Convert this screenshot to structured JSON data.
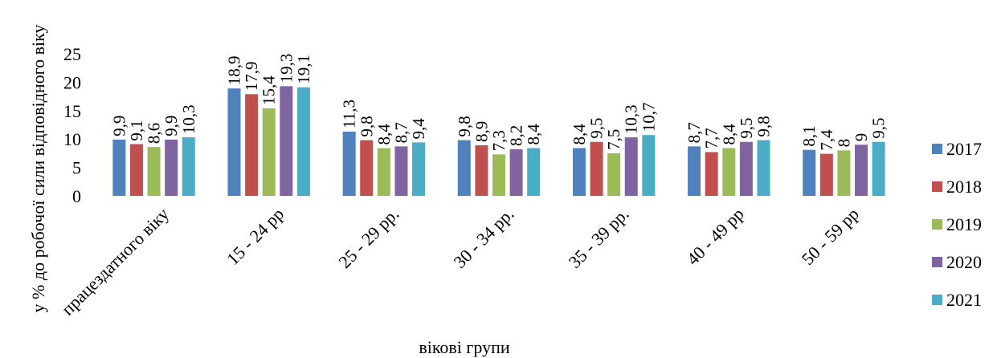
{
  "chart_data": {
    "type": "bar",
    "categories": [
      "працездатного віку",
      "15 - 24 рр",
      "25 - 29 рр.",
      "30 - 34 рр.",
      "35 - 39 рр.",
      "40 - 49 рр",
      "50 - 59 рр"
    ],
    "series": [
      {
        "name": "2017",
        "color": "#4F81BD",
        "values": [
          9.9,
          18.9,
          11.3,
          9.8,
          8.4,
          8.7,
          8.1
        ],
        "labels": [
          "9,9",
          "18,9",
          "11,3",
          "9,8",
          "8,4",
          "8,7",
          "8,1"
        ]
      },
      {
        "name": "2018",
        "color": "#C0504D",
        "values": [
          9.1,
          17.9,
          9.8,
          8.9,
          9.5,
          7.7,
          7.4
        ],
        "labels": [
          "9,1",
          "17,9",
          "9,8",
          "8,9",
          "9,5",
          "7,7",
          "7,4"
        ]
      },
      {
        "name": "2019",
        "color": "#9BBB59",
        "values": [
          8.6,
          15.4,
          8.4,
          7.3,
          7.5,
          8.4,
          8.0
        ],
        "labels": [
          "8,6",
          "15,4",
          "8,4",
          "7,3",
          "7,5",
          "8,4",
          "8"
        ]
      },
      {
        "name": "2020",
        "color": "#8064A2",
        "values": [
          9.9,
          19.3,
          8.7,
          8.2,
          10.3,
          9.5,
          9.0
        ],
        "labels": [
          "9,9",
          "19,3",
          "8,7",
          "8,2",
          "10,3",
          "9,5",
          "9"
        ]
      },
      {
        "name": "2021",
        "color": "#4BACC6",
        "values": [
          10.3,
          19.1,
          9.4,
          8.4,
          10.7,
          9.8,
          9.5
        ],
        "labels": [
          "10,3",
          "19,1",
          "9,4",
          "8,4",
          "10,7",
          "9,8",
          "9,5"
        ]
      }
    ],
    "xlabel": "вікові групи",
    "ylabel": "у %  до робочої сили відповідного віку",
    "ylim": [
      0,
      25
    ],
    "yticks": [
      0,
      5,
      10,
      15,
      20,
      25
    ],
    "grid": false,
    "legend_position": "right"
  }
}
